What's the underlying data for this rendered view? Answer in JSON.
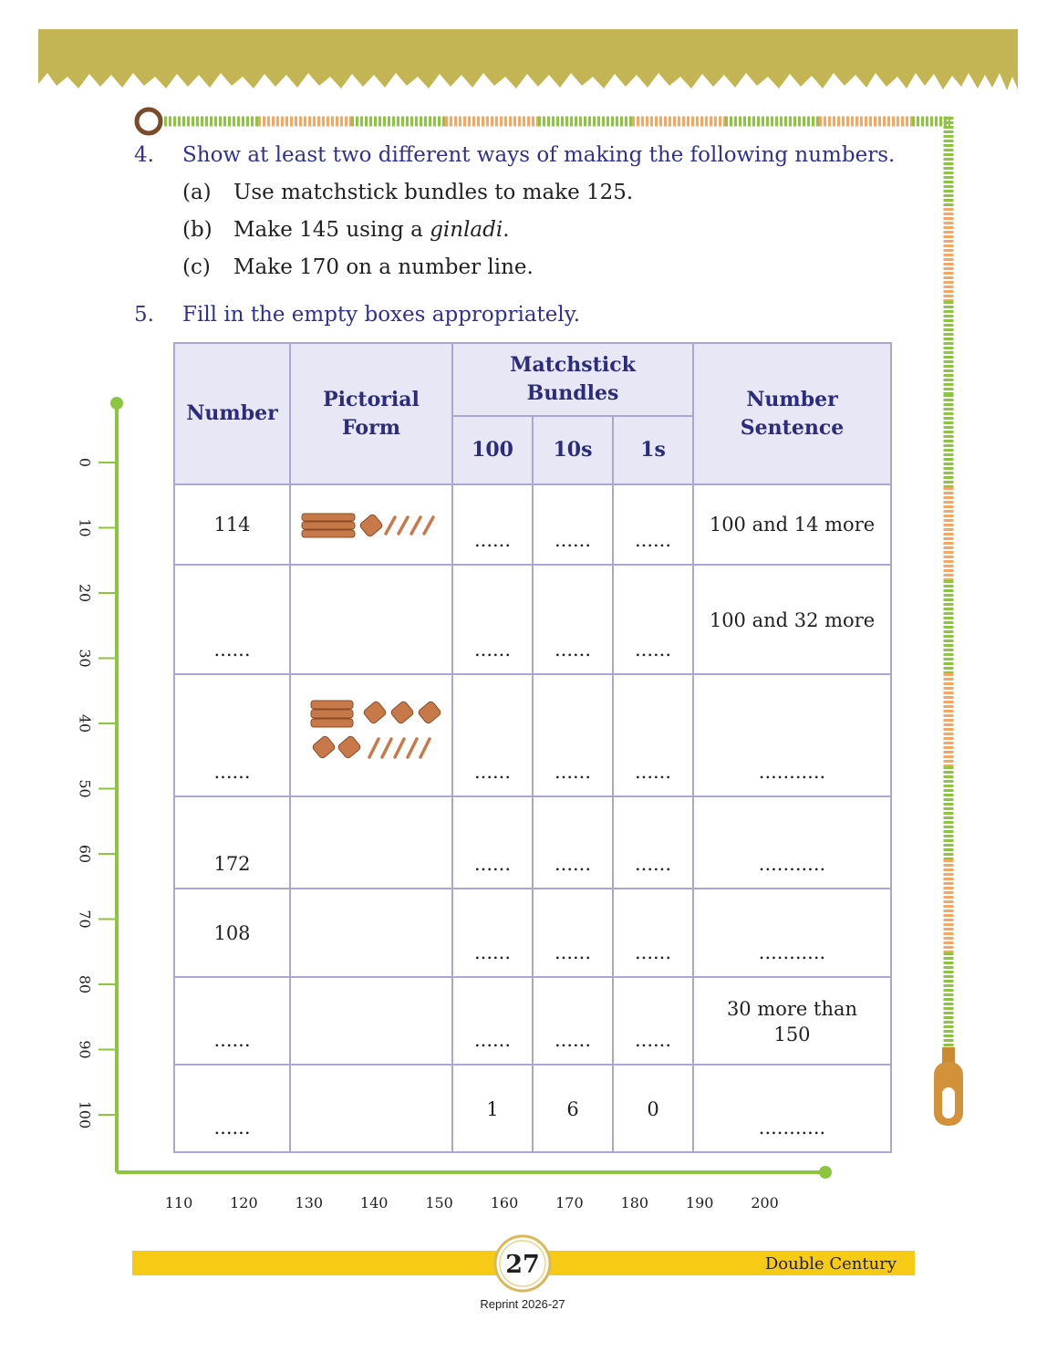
{
  "questions": [
    {
      "number": "4.",
      "text": "Show at least two different ways of making the following numbers.",
      "parts": [
        {
          "label": "(a)",
          "text": "Use matchstick bundles to make 125."
        },
        {
          "label": "(b)",
          "text": "Make 145 using a ",
          "emphasis": "ginladi",
          "text_after": "."
        },
        {
          "label": "(c)",
          "text": "Make 170 on a number line."
        }
      ]
    },
    {
      "number": "5.",
      "text": "Fill in the empty boxes appropriately."
    }
  ],
  "table": {
    "headers": {
      "number": "Number",
      "pictorial": "Pictorial Form",
      "bundles": "Matchstick Bundles",
      "hundreds": "100",
      "tens": "10s",
      "ones": "1s",
      "sentence": "Number Sentence"
    },
    "rows": [
      {
        "number": "114",
        "hundreds": "......",
        "tens": "......",
        "ones": "......",
        "sentence": "100 and 14 more"
      },
      {
        "number": "......",
        "hundreds": "......",
        "tens": "......",
        "ones": "......",
        "sentence": "100 and 32 more"
      },
      {
        "number": "......",
        "hundreds": "......",
        "tens": "......",
        "ones": "......",
        "sentence": "..........."
      },
      {
        "number": "172",
        "hundreds": "......",
        "tens": "......",
        "ones": "......",
        "sentence": "..........."
      },
      {
        "number": "108",
        "hundreds": "......",
        "tens": "......",
        "ones": "......",
        "sentence": "..........."
      },
      {
        "number": "......",
        "hundreds": "......",
        "tens": "......",
        "ones": "......",
        "sentence": "30 more than 150"
      },
      {
        "number": "......",
        "hundreds": "1",
        "tens": "6",
        "ones": "0",
        "sentence": "..........."
      }
    ]
  },
  "ruler": {
    "vertical": [
      0,
      10,
      20,
      30,
      40,
      50,
      60,
      70,
      80,
      90,
      100
    ],
    "horizontal": [
      110,
      120,
      130,
      140,
      150,
      160,
      170,
      180,
      190,
      200
    ]
  },
  "footer": {
    "page": "27",
    "title": "Double Century",
    "reprint": "Reprint 2026-27"
  }
}
